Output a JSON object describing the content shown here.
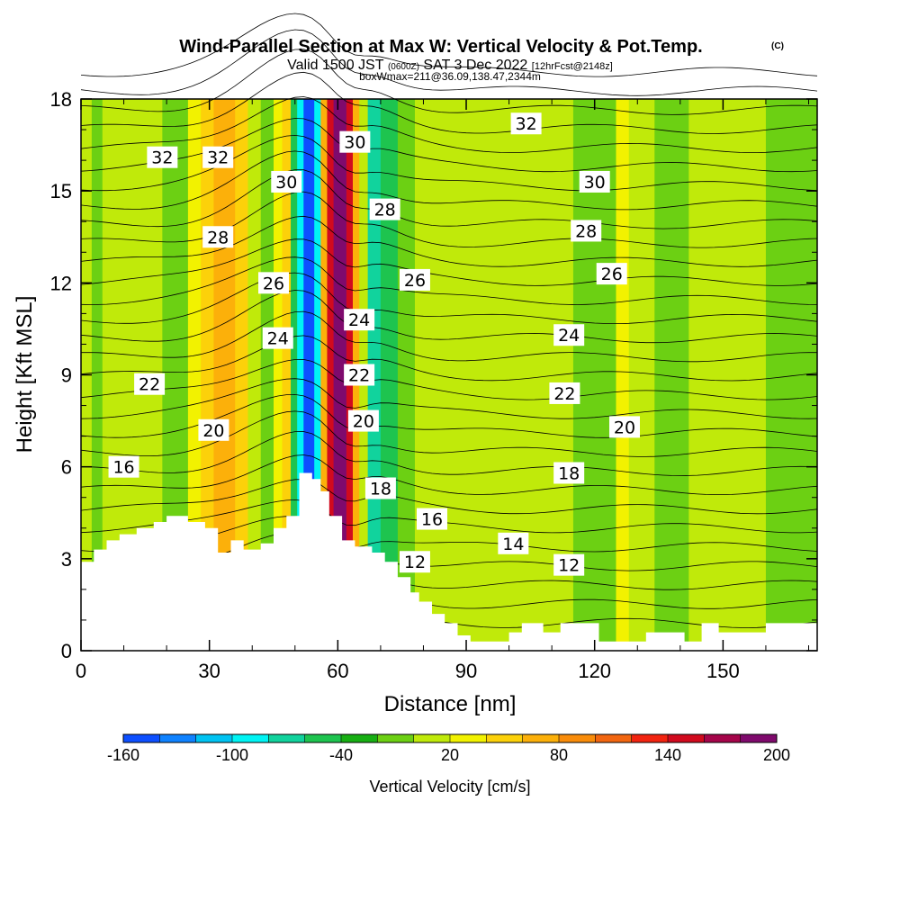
{
  "header": {
    "title": "Wind-Parallel Section at Max W: Vertical Velocity & Pot.Temp.",
    "copyright": "(C)",
    "valid_a": "Valid 1500 JST",
    "valid_b": "(0600Z)",
    "valid_c": "SAT 3 Dec 2022",
    "valid_d": "[12hrFcst@2148z]",
    "box": "boxWmax=211@36.09,138.47,2344m"
  },
  "chart_data": {
    "type": "heatmap",
    "xlabel": "Distance [nm]",
    "ylabel": "Height [Kft MSL]",
    "xlim": [
      0,
      172
    ],
    "ylim": [
      0,
      18
    ],
    "x_ticks": [
      0,
      30,
      60,
      90,
      120,
      150
    ],
    "y_ticks": [
      0,
      3,
      6,
      9,
      12,
      15,
      18
    ],
    "colorbar": {
      "label": "Vertical Velocity [cm/s]",
      "tick_labels": [
        "-160",
        "-100",
        "-40",
        "20",
        "80",
        "140",
        "200"
      ],
      "levels": [
        -160,
        -140,
        -120,
        -100,
        -80,
        -60,
        -40,
        -20,
        0,
        20,
        40,
        60,
        80,
        100,
        120,
        140,
        160,
        180,
        200
      ],
      "colors": [
        "#0a17ff",
        "#0d4fff",
        "#0f82ff",
        "#00c3f2",
        "#00f4f4",
        "#11d39d",
        "#1ec44f",
        "#17af13",
        "#6cd013",
        "#c0ea0a",
        "#f2f200",
        "#fcd10a",
        "#fcb00a",
        "#f98c0a",
        "#f26610",
        "#f22410",
        "#d10a1e",
        "#a5054a",
        "#7f0a6d",
        "#5a0a82"
      ]
    },
    "terrain": [
      [
        0,
        2.9
      ],
      [
        3,
        2.9
      ],
      [
        3,
        3.3
      ],
      [
        6,
        3.3
      ],
      [
        6,
        3.6
      ],
      [
        9,
        3.6
      ],
      [
        9,
        3.8
      ],
      [
        13,
        3.8
      ],
      [
        13,
        4.0
      ],
      [
        17,
        4.0
      ],
      [
        17,
        4.2
      ],
      [
        20,
        4.2
      ],
      [
        20,
        4.4
      ],
      [
        25,
        4.4
      ],
      [
        25,
        4.2
      ],
      [
        29,
        4.2
      ],
      [
        29,
        4.0
      ],
      [
        32,
        4.0
      ],
      [
        32,
        3.2
      ],
      [
        35,
        3.2
      ],
      [
        35,
        3.6
      ],
      [
        38,
        3.6
      ],
      [
        38,
        3.3
      ],
      [
        42,
        3.3
      ],
      [
        42,
        3.5
      ],
      [
        45,
        3.5
      ],
      [
        45,
        4.0
      ],
      [
        48,
        4.0
      ],
      [
        48,
        4.4
      ],
      [
        51,
        4.4
      ],
      [
        51,
        5.8
      ],
      [
        54,
        5.8
      ],
      [
        54,
        5.6
      ],
      [
        56,
        5.6
      ],
      [
        56,
        5.2
      ],
      [
        58,
        5.2
      ],
      [
        58,
        4.4
      ],
      [
        61,
        4.4
      ],
      [
        61,
        3.6
      ],
      [
        64,
        3.6
      ],
      [
        64,
        3.4
      ],
      [
        68,
        3.4
      ],
      [
        68,
        3.2
      ],
      [
        71,
        3.2
      ],
      [
        71,
        2.9
      ],
      [
        74,
        2.9
      ],
      [
        74,
        2.4
      ],
      [
        77,
        2.4
      ],
      [
        77,
        1.9
      ],
      [
        79,
        1.9
      ],
      [
        79,
        1.6
      ],
      [
        82,
        1.6
      ],
      [
        82,
        1.2
      ],
      [
        85,
        1.2
      ],
      [
        85,
        0.9
      ],
      [
        88,
        0.9
      ],
      [
        88,
        0.5
      ],
      [
        91,
        0.5
      ],
      [
        91,
        0.3
      ],
      [
        100,
        0.3
      ],
      [
        100,
        0.6
      ],
      [
        103,
        0.6
      ],
      [
        103,
        0.9
      ],
      [
        108,
        0.9
      ],
      [
        108,
        0.6
      ],
      [
        112,
        0.6
      ],
      [
        112,
        0.9
      ],
      [
        121,
        0.9
      ],
      [
        121,
        0.3
      ],
      [
        132,
        0.3
      ],
      [
        132,
        0.6
      ],
      [
        141,
        0.6
      ],
      [
        141,
        0.3
      ],
      [
        145,
        0.3
      ],
      [
        145,
        0.9
      ],
      [
        149,
        0.9
      ],
      [
        149,
        0.6
      ],
      [
        160,
        0.6
      ],
      [
        160,
        0.9
      ],
      [
        172,
        0.9
      ]
    ],
    "bands": [
      {
        "x": 0,
        "w": 2.5,
        "value": 0
      },
      {
        "x": 2.5,
        "w": 2.5,
        "value": -20
      },
      {
        "x": 5,
        "w": 5,
        "value": 0
      },
      {
        "x": 10,
        "w": 5,
        "value": 10
      },
      {
        "x": 15,
        "w": 4,
        "value": 0
      },
      {
        "x": 19,
        "w": 6,
        "value": -20
      },
      {
        "x": 25,
        "w": 3,
        "value": 20
      },
      {
        "x": 28,
        "w": 3,
        "value": 50
      },
      {
        "x": 31,
        "w": 5,
        "value": 70
      },
      {
        "x": 36,
        "w": 3,
        "value": 40
      },
      {
        "x": 39,
        "w": 3,
        "value": 0
      },
      {
        "x": 42,
        "w": 3,
        "value": -20
      },
      {
        "x": 45,
        "w": 2,
        "value": 20
      },
      {
        "x": 47,
        "w": 2,
        "value": 40
      },
      {
        "x": 49,
        "w": 1.5,
        "value": -60
      },
      {
        "x": 50.5,
        "w": 1.5,
        "value": -100
      },
      {
        "x": 52,
        "w": 2.5,
        "value": -150
      },
      {
        "x": 54.5,
        "w": 1.5,
        "value": -90
      },
      {
        "x": 56,
        "w": 1.5,
        "value": 60
      },
      {
        "x": 57.5,
        "w": 1.5,
        "value": 140
      },
      {
        "x": 59,
        "w": 3,
        "value": 190
      },
      {
        "x": 62,
        "w": 1.5,
        "value": 140
      },
      {
        "x": 63.5,
        "w": 1.5,
        "value": 70
      },
      {
        "x": 65,
        "w": 2,
        "value": 10
      },
      {
        "x": 67,
        "w": 3,
        "value": -80
      },
      {
        "x": 70,
        "w": 4,
        "value": -50
      },
      {
        "x": 74,
        "w": 4,
        "value": -20
      },
      {
        "x": 78,
        "w": 3,
        "value": 0
      },
      {
        "x": 81,
        "w": 4,
        "value": 10
      },
      {
        "x": 85,
        "w": 6,
        "value": 0
      },
      {
        "x": 91,
        "w": 6,
        "value": 10
      },
      {
        "x": 97,
        "w": 10,
        "value": 0
      },
      {
        "x": 107,
        "w": 8,
        "value": 10
      },
      {
        "x": 115,
        "w": 10,
        "value": -20
      },
      {
        "x": 125,
        "w": 3,
        "value": 30
      },
      {
        "x": 128,
        "w": 6,
        "value": 10
      },
      {
        "x": 134,
        "w": 8,
        "value": -10
      },
      {
        "x": 142,
        "w": 8,
        "value": 10
      },
      {
        "x": 150,
        "w": 10,
        "value": 0
      },
      {
        "x": 160,
        "w": 12,
        "value": -20
      }
    ],
    "contour_labels": [
      {
        "text": "32",
        "x": 19,
        "y": 16.1
      },
      {
        "text": "32",
        "x": 32,
        "y": 16.1
      },
      {
        "text": "30",
        "x": 48,
        "y": 15.3
      },
      {
        "text": "30",
        "x": 64,
        "y": 16.6
      },
      {
        "text": "28",
        "x": 32,
        "y": 13.5
      },
      {
        "text": "28",
        "x": 71,
        "y": 14.4
      },
      {
        "text": "26",
        "x": 45,
        "y": 12.0
      },
      {
        "text": "26",
        "x": 78,
        "y": 12.1
      },
      {
        "text": "24",
        "x": 46,
        "y": 10.2
      },
      {
        "text": "24",
        "x": 65,
        "y": 10.8
      },
      {
        "text": "22",
        "x": 16,
        "y": 8.7
      },
      {
        "text": "22",
        "x": 65,
        "y": 9.0
      },
      {
        "text": "20",
        "x": 31,
        "y": 7.2
      },
      {
        "text": "20",
        "x": 66,
        "y": 7.5
      },
      {
        "text": "16",
        "x": 10,
        "y": 6.0
      },
      {
        "text": "18",
        "x": 70,
        "y": 5.3
      },
      {
        "text": "16",
        "x": 82,
        "y": 4.3
      },
      {
        "text": "12",
        "x": 78,
        "y": 2.9
      },
      {
        "text": "32",
        "x": 104,
        "y": 17.2
      },
      {
        "text": "30",
        "x": 120,
        "y": 15.3
      },
      {
        "text": "28",
        "x": 118,
        "y": 13.7
      },
      {
        "text": "26",
        "x": 124,
        "y": 12.3
      },
      {
        "text": "24",
        "x": 114,
        "y": 10.3
      },
      {
        "text": "22",
        "x": 113,
        "y": 8.4
      },
      {
        "text": "20",
        "x": 127,
        "y": 7.3
      },
      {
        "text": "18",
        "x": 114,
        "y": 5.8
      },
      {
        "text": "14",
        "x": 101,
        "y": 3.5
      },
      {
        "text": "12",
        "x": 114,
        "y": 2.8
      }
    ]
  }
}
